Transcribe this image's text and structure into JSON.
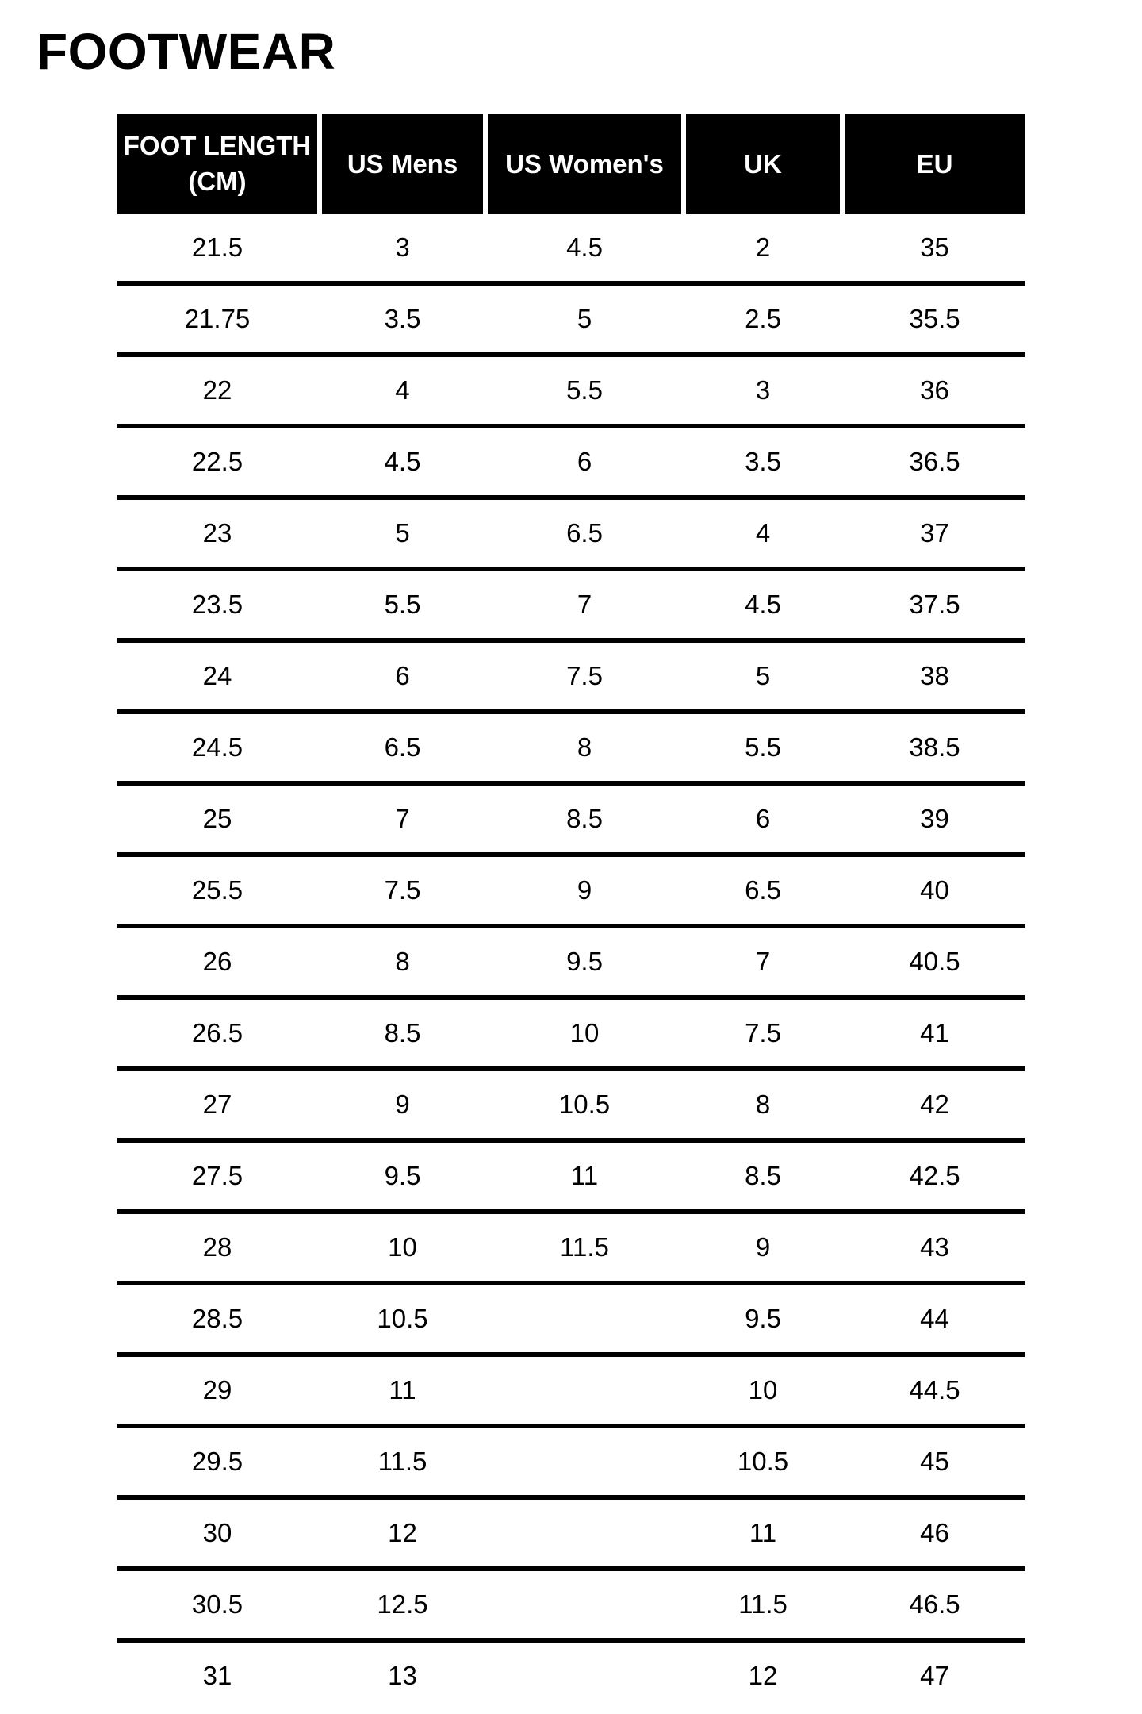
{
  "title": "FOOTWEAR",
  "colors": {
    "header_bg": "#000000",
    "header_text": "#ffffff",
    "row_bg": "#ffffff",
    "row_text": "#000000",
    "row_border": "#000000"
  },
  "chart_data": {
    "type": "table",
    "title": "FOOTWEAR",
    "columns": [
      "FOOT LENGTH (CM)",
      "US Mens",
      "US Women's",
      "UK",
      "EU"
    ],
    "rows": [
      [
        "21.5",
        "3",
        "4.5",
        "2",
        "35"
      ],
      [
        "21.75",
        "3.5",
        "5",
        "2.5",
        "35.5"
      ],
      [
        "22",
        "4",
        "5.5",
        "3",
        "36"
      ],
      [
        "22.5",
        "4.5",
        "6",
        "3.5",
        "36.5"
      ],
      [
        "23",
        "5",
        "6.5",
        "4",
        "37"
      ],
      [
        "23.5",
        "5.5",
        "7",
        "4.5",
        "37.5"
      ],
      [
        "24",
        "6",
        "7.5",
        "5",
        "38"
      ],
      [
        "24.5",
        "6.5",
        "8",
        "5.5",
        "38.5"
      ],
      [
        "25",
        "7",
        "8.5",
        "6",
        "39"
      ],
      [
        "25.5",
        "7.5",
        "9",
        "6.5",
        "40"
      ],
      [
        "26",
        "8",
        "9.5",
        "7",
        "40.5"
      ],
      [
        "26.5",
        "8.5",
        "10",
        "7.5",
        "41"
      ],
      [
        "27",
        "9",
        "10.5",
        "8",
        "42"
      ],
      [
        "27.5",
        "9.5",
        "11",
        "8.5",
        "42.5"
      ],
      [
        "28",
        "10",
        "11.5",
        "9",
        "43"
      ],
      [
        "28.5",
        "10.5",
        "",
        "9.5",
        "44"
      ],
      [
        "29",
        "11",
        "",
        "10",
        "44.5"
      ],
      [
        "29.5",
        "11.5",
        "",
        "10.5",
        "45"
      ],
      [
        "30",
        "12",
        "",
        "11",
        "46"
      ],
      [
        "30.5",
        "12.5",
        "",
        "11.5",
        "46.5"
      ],
      [
        "31",
        "13",
        "",
        "12",
        "47"
      ]
    ]
  }
}
